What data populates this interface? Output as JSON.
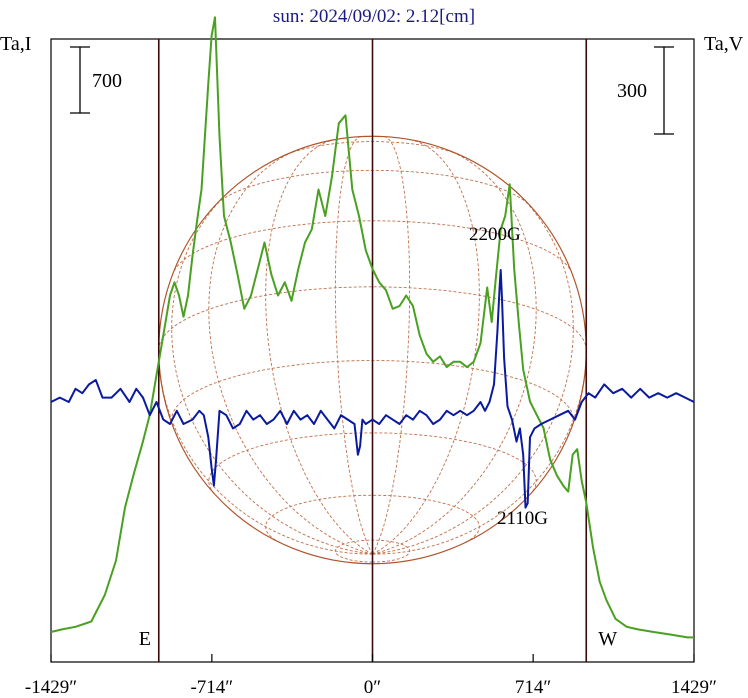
{
  "chart_data": {
    "type": "line",
    "title": "sun: 2024/09/02: 2.12[cm]",
    "left_axis_label": "Ta,I",
    "right_axis_label": "Ta,V",
    "left_scale_bar": "700",
    "right_scale_bar": "300",
    "x_unit": "arcsec",
    "xlim": [
      -1429,
      1429
    ],
    "x_ticks": [
      {
        "value": -1429,
        "label": "-1429″"
      },
      {
        "value": -714,
        "label": "-714″"
      },
      {
        "value": 0,
        "label": "0″"
      },
      {
        "value": 714,
        "label": "714″"
      },
      {
        "value": 1429,
        "label": "1429″"
      }
    ],
    "limb_markers": [
      {
        "value": -950,
        "label": "E"
      },
      {
        "value": 0,
        "label": ""
      },
      {
        "value": 950,
        "label": "W"
      }
    ],
    "solar_radius": 950,
    "annotations": [
      {
        "label": "2200G",
        "x": 570
      },
      {
        "label": "2110G",
        "x": 690
      }
    ],
    "series": [
      {
        "key": "intensity",
        "color": "#4aa020",
        "x": [
          -1429,
          -1380,
          -1320,
          -1250,
          -1190,
          -1140,
          -1100,
          -1060,
          -1020,
          -990,
          -960,
          -930,
          -900,
          -880,
          -860,
          -840,
          -820,
          -800,
          -780,
          -760,
          -745,
          -730,
          -715,
          -700,
          -680,
          -660,
          -630,
          -600,
          -570,
          -540,
          -510,
          -480,
          -450,
          -420,
          -390,
          -360,
          -330,
          -300,
          -270,
          -240,
          -210,
          -180,
          -150,
          -120,
          -90,
          -60,
          -30,
          0,
          30,
          60,
          90,
          120,
          150,
          180,
          210,
          240,
          270,
          300,
          330,
          360,
          390,
          420,
          450,
          480,
          510,
          530,
          550,
          570,
          590,
          610,
          630,
          650,
          670,
          700,
          730,
          760,
          790,
          820,
          850,
          870,
          890,
          910,
          930,
          950,
          980,
          1010,
          1040,
          1080,
          1130,
          1180,
          1250,
          1330,
          1400,
          1429
        ],
        "y": [
          0.03,
          0.04,
          0.05,
          0.07,
          0.17,
          0.3,
          0.5,
          0.63,
          0.75,
          0.85,
          1.0,
          1.15,
          1.3,
          1.35,
          1.3,
          1.22,
          1.3,
          1.45,
          1.58,
          1.7,
          1.9,
          2.1,
          2.28,
          2.35,
          1.9,
          1.6,
          1.5,
          1.38,
          1.25,
          1.3,
          1.4,
          1.5,
          1.38,
          1.3,
          1.35,
          1.28,
          1.4,
          1.5,
          1.55,
          1.7,
          1.6,
          1.75,
          1.95,
          1.98,
          1.7,
          1.6,
          1.47,
          1.4,
          1.35,
          1.32,
          1.25,
          1.26,
          1.3,
          1.26,
          1.15,
          1.08,
          1.05,
          1.07,
          1.03,
          1.05,
          1.05,
          1.03,
          1.05,
          1.12,
          1.33,
          1.2,
          1.38,
          1.55,
          1.6,
          1.72,
          1.4,
          1.2,
          1.02,
          0.9,
          0.85,
          0.8,
          0.68,
          0.62,
          0.58,
          0.56,
          0.7,
          0.72,
          0.6,
          0.52,
          0.35,
          0.22,
          0.15,
          0.08,
          0.05,
          0.04,
          0.03,
          0.02,
          0.01,
          0.01
        ]
      },
      {
        "key": "polarization",
        "color": "#0a1aa0",
        "x": [
          -1429,
          -1390,
          -1350,
          -1320,
          -1290,
          -1260,
          -1230,
          -1200,
          -1160,
          -1120,
          -1080,
          -1050,
          -1020,
          -990,
          -960,
          -930,
          -900,
          -870,
          -840,
          -800,
          -770,
          -750,
          -730,
          -715,
          -705,
          -695,
          -680,
          -650,
          -620,
          -590,
          -560,
          -530,
          -500,
          -470,
          -440,
          -410,
          -380,
          -350,
          -320,
          -290,
          -260,
          -230,
          -200,
          -170,
          -140,
          -110,
          -80,
          -65,
          -55,
          -45,
          -30,
          0,
          30,
          60,
          90,
          120,
          150,
          180,
          210,
          240,
          270,
          300,
          330,
          360,
          390,
          420,
          450,
          480,
          500,
          520,
          540,
          555,
          565,
          570,
          575,
          585,
          600,
          620,
          640,
          655,
          670,
          680,
          690,
          700,
          720,
          750,
          790,
          830,
          870,
          900,
          930,
          960,
          990,
          1030,
          1070,
          1110,
          1150,
          1190,
          1230,
          1270,
          1310,
          1350,
          1390,
          1429
        ],
        "y": [
          0.0,
          0.01,
          0.0,
          0.03,
          0.02,
          0.04,
          0.05,
          0.01,
          0.01,
          0.03,
          0.0,
          0.03,
          0.01,
          -0.03,
          0.0,
          -0.04,
          -0.05,
          -0.02,
          -0.05,
          -0.04,
          -0.02,
          -0.03,
          -0.08,
          -0.15,
          -0.19,
          -0.13,
          -0.02,
          -0.03,
          -0.06,
          -0.05,
          -0.02,
          -0.04,
          -0.03,
          -0.05,
          -0.04,
          -0.02,
          -0.05,
          -0.02,
          -0.04,
          -0.03,
          -0.05,
          -0.02,
          -0.04,
          -0.06,
          -0.03,
          -0.04,
          -0.05,
          -0.12,
          -0.1,
          -0.04,
          -0.05,
          -0.04,
          -0.05,
          -0.03,
          -0.04,
          -0.05,
          -0.03,
          -0.04,
          -0.02,
          -0.03,
          -0.05,
          -0.04,
          -0.02,
          -0.03,
          -0.02,
          -0.03,
          -0.02,
          0.0,
          -0.02,
          0.0,
          0.04,
          0.16,
          0.26,
          0.3,
          0.24,
          0.1,
          -0.01,
          -0.04,
          -0.09,
          -0.06,
          -0.12,
          -0.24,
          -0.23,
          -0.08,
          -0.06,
          -0.05,
          -0.04,
          -0.03,
          -0.02,
          -0.04,
          0.0,
          0.02,
          0.01,
          0.04,
          0.02,
          0.03,
          0.01,
          0.03,
          0.01,
          0.02,
          0.01,
          0.02,
          0.01,
          0.0
        ]
      }
    ]
  }
}
